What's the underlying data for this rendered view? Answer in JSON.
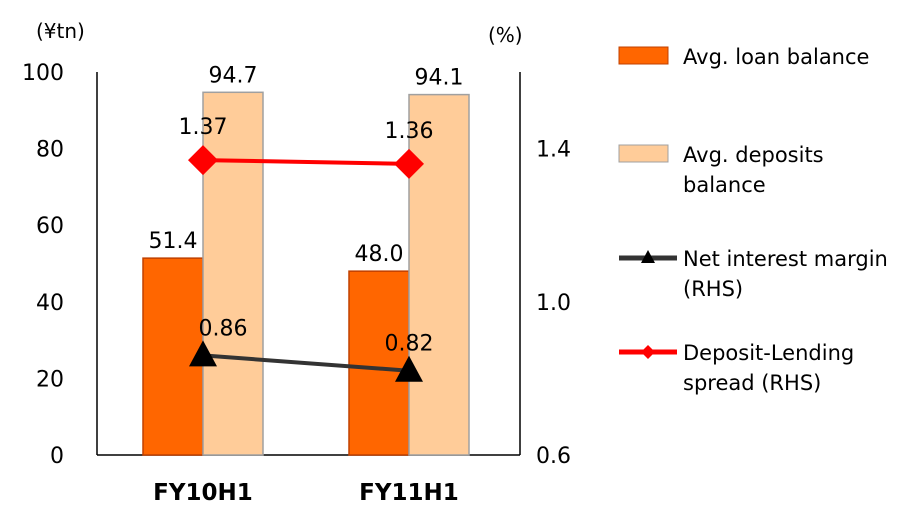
{
  "chart_data": {
    "type": "bar",
    "left_unit": "(¥tn)",
    "right_unit": "(%)",
    "categories": [
      "FY10H1",
      "FY11H1"
    ],
    "left_axis": {
      "ylim": [
        0,
        100
      ],
      "ticks": [
        0,
        20,
        40,
        60,
        80,
        100
      ]
    },
    "right_axis": {
      "ylim": [
        0.6,
        1.6
      ],
      "ticks": [
        "0.6",
        "1.0",
        "1.4"
      ]
    },
    "bar_series": [
      {
        "name": "Avg. loan balance",
        "values": [
          51.4,
          48.0
        ],
        "labels": [
          "51.4",
          "48.0"
        ],
        "color": "#FF6600",
        "stroke": "#C04000"
      },
      {
        "name": "Avg. deposits balance",
        "values": [
          94.7,
          94.1
        ],
        "labels": [
          "94.7",
          "94.1"
        ],
        "color": "#FFCC99",
        "stroke": "#A0A0A0"
      }
    ],
    "line_series": [
      {
        "name": "Net interest margin (RHS)",
        "values": [
          0.86,
          0.82
        ],
        "labels": [
          "0.86",
          "0.82"
        ],
        "color": "#333333",
        "marker": "triangle",
        "axis": "right"
      },
      {
        "name": "Deposit-Lending spread (RHS)",
        "values": [
          1.37,
          1.36
        ],
        "labels": [
          "1.37",
          "1.36"
        ],
        "color": "#FF0000",
        "marker": "diamond",
        "axis": "right"
      }
    ],
    "legend": {
      "placement": "right",
      "items": [
        {
          "lines": [
            "Avg. loan balance"
          ]
        },
        {
          "lines": [
            "Avg. deposits",
            "balance"
          ]
        },
        {
          "lines": [
            "Net interest margin",
            "(RHS)"
          ]
        },
        {
          "lines": [
            "Deposit-Lending",
            "spread (RHS)"
          ]
        }
      ]
    },
    "grid": false
  }
}
